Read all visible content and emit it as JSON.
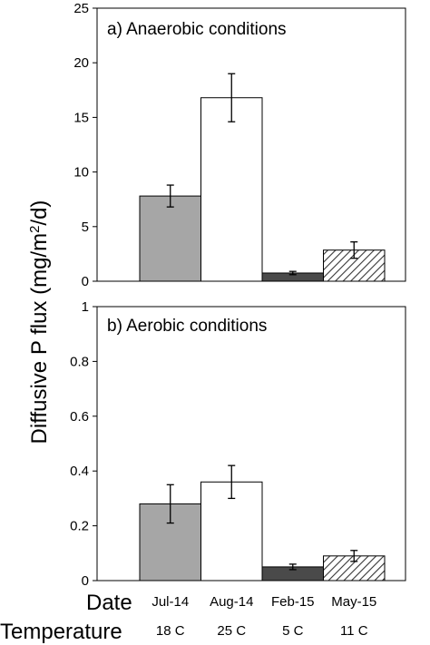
{
  "figure": {
    "ylabel": "Diffusive P flux (mg/m2/d)",
    "row_labels": {
      "date": "Date",
      "temperature": "Temperature"
    },
    "categories": [
      "Jul-14",
      "Aug-14",
      "Feb-15",
      "May-15"
    ],
    "temperatures": [
      "18 C",
      "25 C",
      "5 C",
      "11 C"
    ],
    "bar_styles": [
      {
        "fill": "#a6a6a6",
        "pattern": "solid"
      },
      {
        "fill": "#ffffff",
        "pattern": "solid"
      },
      {
        "fill": "#4a4a4a",
        "pattern": "solid"
      },
      {
        "fill": "#ffffff",
        "pattern": "diagonal-hatch"
      }
    ]
  },
  "chart_data": [
    {
      "type": "bar",
      "title": "a) Anaerobic conditions",
      "categories": [
        "Jul-14",
        "Aug-14",
        "Feb-15",
        "May-15"
      ],
      "values": [
        7.8,
        16.8,
        0.75,
        2.85
      ],
      "error": [
        1.0,
        2.2,
        0.15,
        0.75
      ],
      "ylim": [
        0,
        25
      ],
      "yticks": [
        "0",
        "5",
        "10",
        "15",
        "20",
        "25"
      ],
      "grid": false
    },
    {
      "type": "bar",
      "title": "b) Aerobic conditions",
      "categories": [
        "Jul-14",
        "Aug-14",
        "Feb-15",
        "May-15"
      ],
      "values": [
        0.28,
        0.36,
        0.05,
        0.09
      ],
      "error": [
        0.07,
        0.06,
        0.01,
        0.02
      ],
      "ylim": [
        0,
        1
      ],
      "yticks": [
        "0",
        "0.2",
        "0.4",
        "0.6",
        "0.8",
        "1"
      ],
      "grid": false
    }
  ]
}
